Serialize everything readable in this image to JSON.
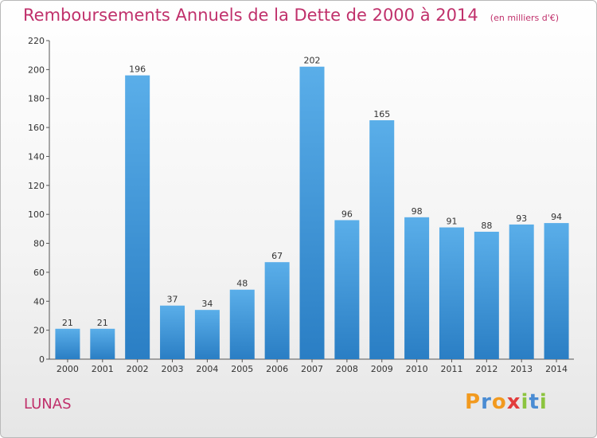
{
  "header": {
    "title": "Remboursements Annuels de la Dette de 2000 à 2014",
    "unit": "(en milliers d'€)"
  },
  "footer": {
    "commune": "LUNAS",
    "logo": "Proxiti"
  },
  "colors": {
    "accent": "#c0306b",
    "bar_top": "#5aaee9",
    "bar_bottom": "#2a7ec4"
  },
  "chart_data": {
    "type": "bar",
    "categories": [
      "2000",
      "2001",
      "2002",
      "2003",
      "2004",
      "2005",
      "2006",
      "2007",
      "2008",
      "2009",
      "2010",
      "2011",
      "2012",
      "2013",
      "2014"
    ],
    "values": [
      21,
      21,
      196,
      37,
      34,
      48,
      67,
      202,
      96,
      165,
      98,
      91,
      88,
      93,
      94
    ],
    "title": "Remboursements Annuels de la Dette de 2000 à 2014",
    "xlabel": "",
    "ylabel": "",
    "ylim": [
      0,
      220
    ],
    "yticks": [
      0,
      20,
      40,
      60,
      80,
      100,
      120,
      140,
      160,
      180,
      200,
      220
    ],
    "grid": false,
    "legend": "none"
  }
}
